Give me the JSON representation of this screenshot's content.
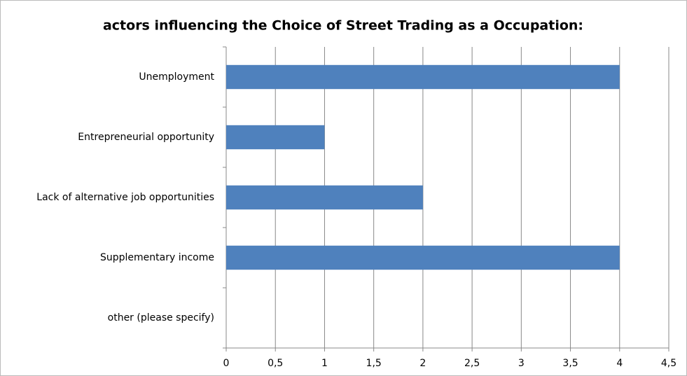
{
  "chart_data": {
    "type": "bar",
    "orientation": "horizontal",
    "title": "actors influencing the Choice of Street Trading as a Occupation:",
    "categories": [
      "Unemployment",
      "Entrepreneurial opportunity",
      "Lack of alternative job opportunities",
      "Supplementary income",
      "other (please specify)"
    ],
    "values": [
      4,
      1,
      2,
      4,
      0
    ],
    "color": "#4f81bd",
    "xlim": [
      0,
      4.5
    ],
    "xticks": [
      0,
      {
        "value": 0.5,
        "label": "0,5"
      },
      1,
      {
        "value": 1.5,
        "label": "1,5"
      },
      2,
      {
        "value": 2.5,
        "label": "2,5"
      },
      3,
      {
        "value": 3.5,
        "label": "3,5"
      },
      4,
      {
        "value": 4.5,
        "label": "4,5"
      }
    ],
    "grid": true
  }
}
